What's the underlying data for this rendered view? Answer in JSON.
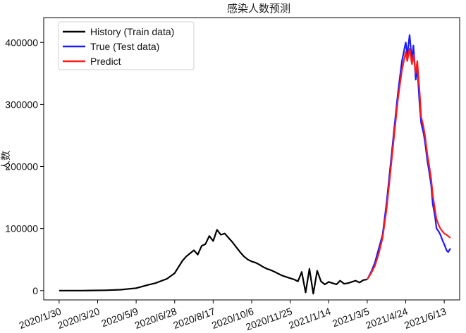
{
  "chart_data": {
    "type": "line",
    "title": "感染人数预测",
    "xlabel": "",
    "ylabel": "人数",
    "x_tick_labels": [
      "2020/1/30",
      "2020/3/20",
      "2020/5/9",
      "2020/6/28",
      "2020/8/17",
      "2020/10/6",
      "2020/11/25",
      "2021/1/14",
      "2021/3/5",
      "2021/4/24",
      "2021/6/13"
    ],
    "x_tick_values": [
      0,
      50,
      100,
      150,
      200,
      250,
      300,
      350,
      400,
      450,
      500
    ],
    "xlim": [
      -20,
      520
    ],
    "ylim": [
      -15000,
      440000
    ],
    "y_ticks": [
      0,
      100000,
      200000,
      300000,
      400000
    ],
    "y_tick_labels": [
      "0",
      "100000",
      "200000",
      "300000",
      "400000"
    ],
    "grid": false,
    "legend_position": "top-left",
    "series": [
      {
        "name": "History (Train data)",
        "color": "#000000",
        "x": [
          0,
          30,
          60,
          80,
          100,
          115,
          125,
          140,
          150,
          160,
          165,
          170,
          175,
          180,
          185,
          190,
          195,
          200,
          205,
          210,
          215,
          220,
          225,
          230,
          235,
          240,
          245,
          250,
          255,
          260,
          265,
          270,
          275,
          280,
          285,
          290,
          295,
          300,
          305,
          310,
          315,
          320,
          325,
          330,
          335,
          340,
          345,
          350,
          355,
          360,
          365,
          370,
          375,
          380,
          385,
          390,
          395,
          400
        ],
        "y": [
          0,
          0,
          500,
          1500,
          4000,
          9000,
          12000,
          19000,
          28000,
          48000,
          55000,
          60000,
          65000,
          58000,
          72000,
          75000,
          88000,
          80000,
          98000,
          90000,
          92000,
          85000,
          78000,
          70000,
          62000,
          55000,
          50000,
          47000,
          45000,
          42000,
          38000,
          35000,
          33000,
          30000,
          27000,
          24000,
          22000,
          20000,
          18000,
          15000,
          30000,
          -3000,
          35000,
          -5000,
          32000,
          15000,
          10000,
          14000,
          12000,
          10000,
          16000,
          11000,
          12000,
          14000,
          16000,
          13000,
          17000,
          18000
        ]
      },
      {
        "name": "True (Test data)",
        "color": "#1a1aff",
        "x": [
          400,
          405,
          410,
          415,
          420,
          425,
          430,
          435,
          440,
          445,
          450,
          452,
          455,
          458,
          460,
          463,
          465,
          468,
          470,
          473,
          475,
          478,
          480,
          483,
          485,
          488,
          490,
          493,
          495,
          498,
          500,
          503,
          505,
          508
        ],
        "y": [
          18000,
          30000,
          45000,
          68000,
          90000,
          140000,
          200000,
          260000,
          320000,
          370000,
          400000,
          380000,
          412000,
          370000,
          395000,
          340000,
          360000,
          300000,
          270000,
          255000,
          240000,
          210000,
          195000,
          170000,
          140000,
          120000,
          100000,
          95000,
          90000,
          80000,
          75000,
          65000,
          62000,
          68000
        ]
      },
      {
        "name": "Predict",
        "color": "#ff1a1a",
        "x": [
          400,
          405,
          410,
          415,
          420,
          425,
          430,
          435,
          440,
          445,
          450,
          452,
          455,
          458,
          460,
          463,
          465,
          468,
          470,
          473,
          475,
          478,
          480,
          483,
          485,
          488,
          490,
          493,
          495,
          498,
          500,
          503,
          505,
          508
        ],
        "y": [
          18000,
          28000,
          40000,
          60000,
          85000,
          130000,
          190000,
          250000,
          310000,
          355000,
          385000,
          370000,
          390000,
          365000,
          380000,
          350000,
          370000,
          320000,
          280000,
          265000,
          250000,
          220000,
          205000,
          180000,
          155000,
          130000,
          115000,
          105000,
          100000,
          95000,
          92000,
          90000,
          88000,
          85000
        ]
      }
    ]
  }
}
